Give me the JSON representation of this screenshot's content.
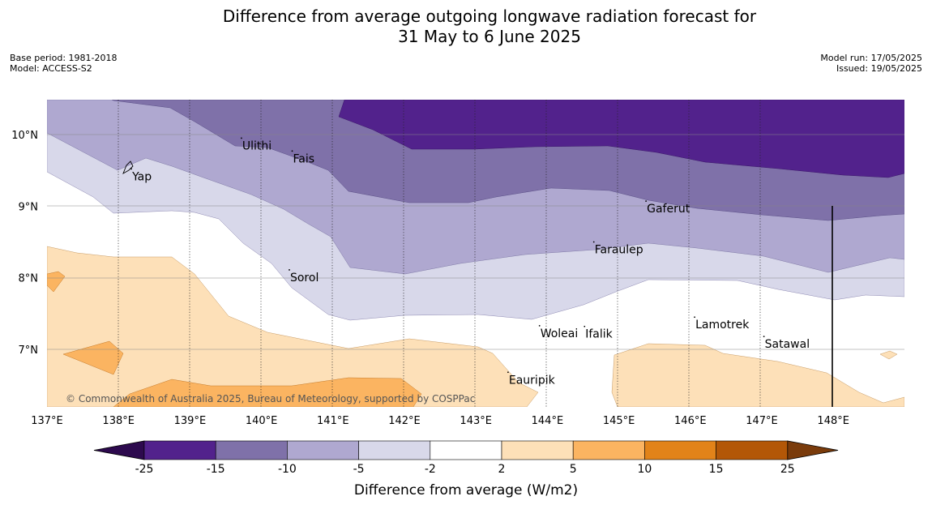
{
  "title_line1": "Difference from average outgoing longwave radiation forecast for",
  "title_line2": "31 May to 6 June 2025",
  "base_period": "Base period: 1981-2018",
  "model": "Model: ACCESS-S2",
  "model_run": "Model run: 17/05/2025",
  "issued": "Issued: 19/05/2025",
  "copyright": "© Commonwealth of Australia 2025, Bureau of Meteorology, supported by COSPPac",
  "lon_labels": [
    "137°E",
    "138°E",
    "139°E",
    "140°E",
    "141°E",
    "142°E",
    "143°E",
    "144°E",
    "145°E",
    "146°E",
    "147°E",
    "148°E"
  ],
  "lat_labels": [
    "10°N",
    "9°N",
    "8°N",
    "7°N"
  ],
  "places": [
    {
      "name": "Yap",
      "lon": 138.18,
      "lat": 9.52
    },
    {
      "name": "Ulithi",
      "lon": 139.72,
      "lat": 9.95
    },
    {
      "name": "Fais",
      "lon": 140.43,
      "lat": 9.77
    },
    {
      "name": "Gaferut",
      "lon": 145.38,
      "lat": 9.07
    },
    {
      "name": "Faraulep",
      "lon": 144.65,
      "lat": 8.5
    },
    {
      "name": "Sorol",
      "lon": 140.39,
      "lat": 8.11
    },
    {
      "name": "Woleai",
      "lon": 143.89,
      "lat": 7.33
    },
    {
      "name": "Ifalik",
      "lon": 144.52,
      "lat": 7.32
    },
    {
      "name": "Lamotrek",
      "lon": 146.06,
      "lat": 7.45
    },
    {
      "name": "Satawal",
      "lon": 147.03,
      "lat": 7.18
    },
    {
      "name": "Eauripik",
      "lon": 143.45,
      "lat": 6.68
    }
  ],
  "colorbar": {
    "label": "Difference from average (W/m2)",
    "ticks": [
      "-25",
      "-15",
      "-10",
      "-5",
      "-2",
      "2",
      "5",
      "10",
      "15",
      "25"
    ],
    "colors": [
      "#52228c",
      "#7f71a9",
      "#afa8d0",
      "#d8d8ea",
      "#ffffff",
      "#fde0b8",
      "#fbb461",
      "#e28319",
      "#b35707"
    ],
    "extend_low_color": "#2d0a4e",
    "extend_high_color": "#7a3b0b"
  }
}
